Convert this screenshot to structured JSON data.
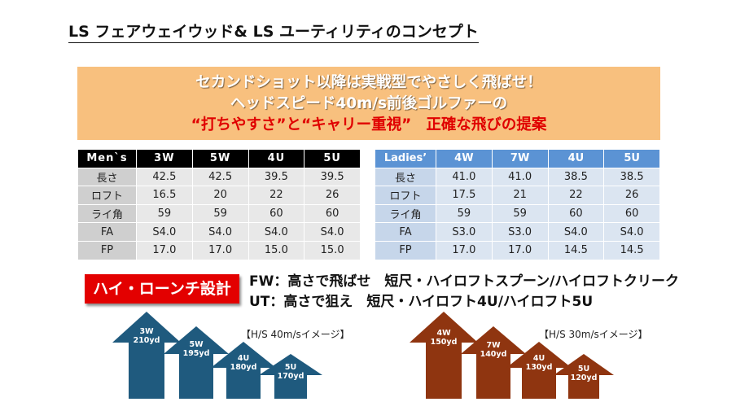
{
  "title": "LS フェアウェイウッド& LS ユーティリティのコンセプト",
  "banner": {
    "line1": "セカンドショット以降は実戦型でやさしく飛ばせ！",
    "line2": "ヘッドスピード40m/s前後ゴルファーの",
    "line3a": "“打ちやすさ”と“キャリー重視”",
    "line3b": "正確な飛びの提案"
  },
  "mens_table": {
    "header": [
      "Men`s",
      "3W",
      "5W",
      "4U",
      "5U"
    ],
    "rows": [
      [
        "長さ",
        "42.5",
        "42.5",
        "39.5",
        "39.5"
      ],
      [
        "ロフト",
        "16.5",
        "20",
        "22",
        "26"
      ],
      [
        "ライ角",
        "59",
        "59",
        "60",
        "60"
      ],
      [
        "FA",
        "S4.0",
        "S4.0",
        "S4.0",
        "S4.0"
      ],
      [
        "FP",
        "17.0",
        "17.0",
        "15.0",
        "15.0"
      ]
    ]
  },
  "ladies_table": {
    "header": [
      "Ladies’",
      "4W",
      "7W",
      "4U",
      "5U"
    ],
    "rows": [
      [
        "長さ",
        "41.0",
        "41.0",
        "38.5",
        "38.5"
      ],
      [
        "ロフト",
        "17.5",
        "21",
        "22",
        "26"
      ],
      [
        "ライ角",
        "59",
        "59",
        "60",
        "60"
      ],
      [
        "FA",
        "S3.0",
        "S3.0",
        "S4.0",
        "S4.0"
      ],
      [
        "FP",
        "17.0",
        "17.0",
        "14.5",
        "14.5"
      ]
    ]
  },
  "design": {
    "badge": "ハイ・ローンチ設計",
    "fw": "FW：高さで飛ばせ　短尺・ハイロフトスプーン/ハイロフトクリーク",
    "ut": "UT：高さで狙え　短尺・ハイロフト4U/ハイロフト5U"
  },
  "mens_arrows": {
    "note": "【H/S 40m/sイメージ】",
    "color": "#1f5a7e",
    "items": [
      {
        "club": "3W",
        "yards": "210yd"
      },
      {
        "club": "5W",
        "yards": "195yd"
      },
      {
        "club": "4U",
        "yards": "180yd"
      },
      {
        "club": "5U",
        "yards": "170yd"
      }
    ]
  },
  "ladies_arrows": {
    "note": "【H/S 30m/sイメージ】",
    "color": "#8f3510",
    "items": [
      {
        "club": "4W",
        "yards": "150yd"
      },
      {
        "club": "7W",
        "yards": "140yd"
      },
      {
        "club": "4U",
        "yards": "130yd"
      },
      {
        "club": "5U",
        "yards": "120yd"
      }
    ]
  }
}
